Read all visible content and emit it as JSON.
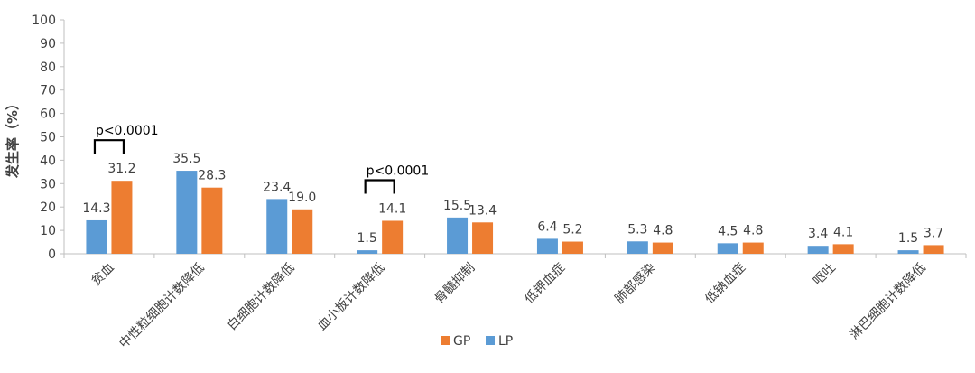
{
  "chart_data": {
    "type": "bar",
    "title": "",
    "xlabel": "",
    "ylabel": "发生率（%）",
    "ylim": [
      0,
      100
    ],
    "ytick_step": 10,
    "grid": false,
    "legend_position": "bottom-center",
    "categories": [
      "贫血",
      "中性粒细胞计数降低",
      "白细胞计数降低",
      "血小板计数降低",
      "骨髓抑制",
      "低钾血症",
      "肺部感染",
      "低钠血症",
      "呕吐",
      "淋巴细胞计数降低"
    ],
    "series": [
      {
        "name": "LP",
        "color": "#5B9BD5",
        "values": [
          14.3,
          35.5,
          23.4,
          1.5,
          15.5,
          6.4,
          5.3,
          4.5,
          3.4,
          1.5
        ]
      },
      {
        "name": "GP",
        "color": "#ED7D31",
        "values": [
          31.2,
          28.3,
          19.0,
          14.1,
          13.4,
          5.2,
          4.8,
          4.8,
          4.1,
          3.7
        ]
      }
    ],
    "legend_order": [
      "GP",
      "LP"
    ],
    "annotations": [
      {
        "category_index": 0,
        "text": "p<0.0001"
      },
      {
        "category_index": 3,
        "text": "p<0.0001"
      }
    ]
  }
}
